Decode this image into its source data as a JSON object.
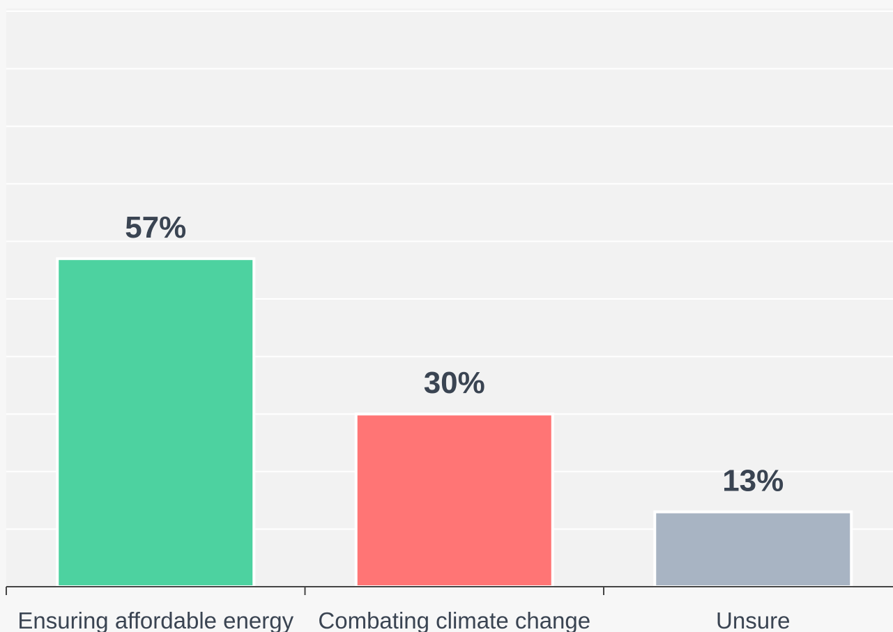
{
  "chart_data": {
    "type": "bar",
    "title": "",
    "xlabel": "",
    "ylabel": "",
    "categories": [
      "Ensuring affordable energy",
      "Combating climate change",
      "Unsure"
    ],
    "values": [
      57,
      30,
      13
    ],
    "value_labels": [
      "57%",
      "30%",
      "13%"
    ],
    "colors": [
      "#4dd2a0",
      "#ff7575",
      "#a8b4c3"
    ],
    "ylim": [
      0,
      100
    ],
    "grid": true,
    "legend": "none"
  }
}
